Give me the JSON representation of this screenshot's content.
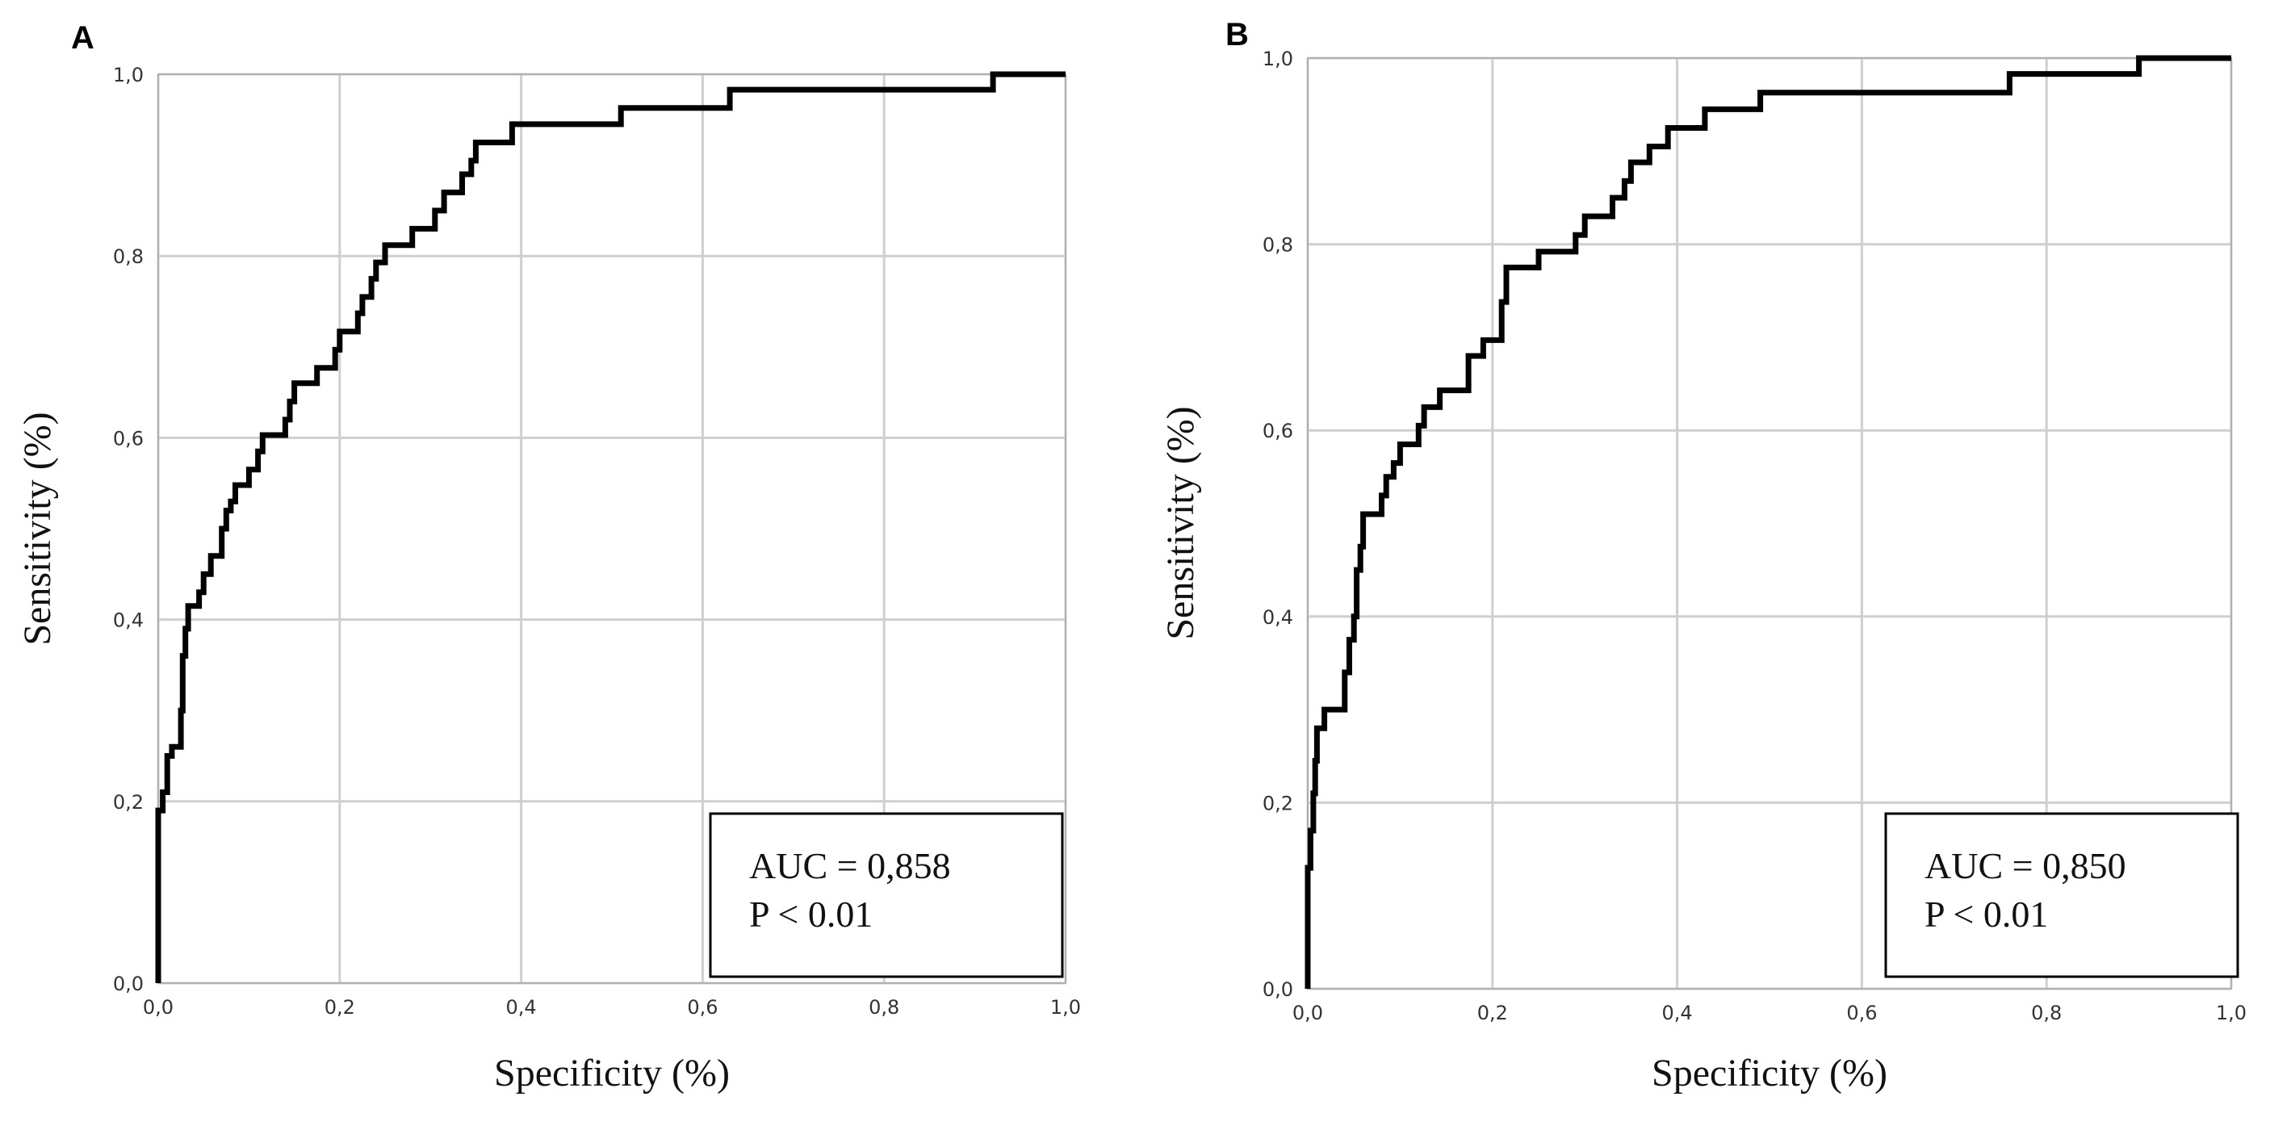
{
  "chart_data": [
    {
      "panel_label": "A",
      "type": "line",
      "xlabel": "Specificity (%)",
      "ylabel": "Sensitivity (%)",
      "xlim": [
        0,
        1
      ],
      "ylim": [
        0,
        1
      ],
      "x_ticks": [
        "0,0",
        "0,2",
        "0,4",
        "0,6",
        "0,8",
        "1,0"
      ],
      "y_ticks": [
        "0,0",
        "0,2",
        "0,4",
        "0,6",
        "0,8",
        "1,0"
      ],
      "grid": true,
      "annotation_placement": "bottom-right",
      "annotation": [
        "AUC = 0,858",
        "P < 0.01"
      ],
      "series": [
        {
          "points": [
            [
              0,
              0
            ],
            [
              0,
              0.19
            ],
            [
              0.005,
              0.19
            ],
            [
              0.005,
              0.21
            ],
            [
              0.01,
              0.21
            ],
            [
              0.01,
              0.25
            ],
            [
              0.015,
              0.25
            ],
            [
              0.015,
              0.26
            ],
            [
              0.025,
              0.26
            ],
            [
              0.025,
              0.3
            ],
            [
              0.027,
              0.3
            ],
            [
              0.027,
              0.36
            ],
            [
              0.03,
              0.36
            ],
            [
              0.03,
              0.39
            ],
            [
              0.033,
              0.39
            ],
            [
              0.033,
              0.415
            ],
            [
              0.045,
              0.415
            ],
            [
              0.045,
              0.43
            ],
            [
              0.05,
              0.43
            ],
            [
              0.05,
              0.45
            ],
            [
              0.058,
              0.45
            ],
            [
              0.058,
              0.47
            ],
            [
              0.07,
              0.47
            ],
            [
              0.07,
              0.5
            ],
            [
              0.075,
              0.5
            ],
            [
              0.075,
              0.52
            ],
            [
              0.08,
              0.52
            ],
            [
              0.08,
              0.53
            ],
            [
              0.085,
              0.53
            ],
            [
              0.085,
              0.548
            ],
            [
              0.1,
              0.548
            ],
            [
              0.1,
              0.565
            ],
            [
              0.11,
              0.565
            ],
            [
              0.11,
              0.585
            ],
            [
              0.115,
              0.585
            ],
            [
              0.115,
              0.603
            ],
            [
              0.14,
              0.603
            ],
            [
              0.14,
              0.62
            ],
            [
              0.145,
              0.62
            ],
            [
              0.145,
              0.64
            ],
            [
              0.15,
              0.64
            ],
            [
              0.15,
              0.66
            ],
            [
              0.175,
              0.66
            ],
            [
              0.175,
              0.677
            ],
            [
              0.195,
              0.677
            ],
            [
              0.195,
              0.697
            ],
            [
              0.2,
              0.697
            ],
            [
              0.2,
              0.717
            ],
            [
              0.22,
              0.717
            ],
            [
              0.22,
              0.737
            ],
            [
              0.225,
              0.737
            ],
            [
              0.225,
              0.755
            ],
            [
              0.235,
              0.755
            ],
            [
              0.235,
              0.775
            ],
            [
              0.24,
              0.775
            ],
            [
              0.24,
              0.793
            ],
            [
              0.25,
              0.793
            ],
            [
              0.25,
              0.812
            ],
            [
              0.28,
              0.812
            ],
            [
              0.28,
              0.83
            ],
            [
              0.305,
              0.83
            ],
            [
              0.305,
              0.85
            ],
            [
              0.315,
              0.85
            ],
            [
              0.315,
              0.87
            ],
            [
              0.335,
              0.87
            ],
            [
              0.335,
              0.89
            ],
            [
              0.345,
              0.89
            ],
            [
              0.345,
              0.905
            ],
            [
              0.35,
              0.905
            ],
            [
              0.35,
              0.925
            ],
            [
              0.39,
              0.925
            ],
            [
              0.39,
              0.945
            ],
            [
              0.51,
              0.945
            ],
            [
              0.51,
              0.963
            ],
            [
              0.63,
              0.963
            ],
            [
              0.63,
              0.983
            ],
            [
              0.92,
              0.983
            ],
            [
              0.92,
              1.0
            ],
            [
              1.0,
              1.0
            ]
          ]
        }
      ]
    },
    {
      "panel_label": "B",
      "type": "line",
      "xlabel": "Specificity (%)",
      "ylabel": "Sensitivity (%)",
      "xlim": [
        0,
        1
      ],
      "ylim": [
        0,
        1
      ],
      "x_ticks": [
        "0,0",
        "0,2",
        "0,4",
        "0,6",
        "0,8",
        "1,0"
      ],
      "y_ticks": [
        "0,0",
        "0,2",
        "0,4",
        "0,6",
        "0,8",
        "1,0"
      ],
      "grid": true,
      "annotation_placement": "bottom-right",
      "annotation": [
        "AUC = 0,850",
        "P < 0.01"
      ],
      "series": [
        {
          "points": [
            [
              0,
              0
            ],
            [
              0,
              0.13
            ],
            [
              0.003,
              0.13
            ],
            [
              0.003,
              0.17
            ],
            [
              0.006,
              0.17
            ],
            [
              0.006,
              0.21
            ],
            [
              0.008,
              0.21
            ],
            [
              0.008,
              0.245
            ],
            [
              0.01,
              0.245
            ],
            [
              0.01,
              0.28
            ],
            [
              0.018,
              0.28
            ],
            [
              0.018,
              0.3
            ],
            [
              0.04,
              0.3
            ],
            [
              0.04,
              0.34
            ],
            [
              0.045,
              0.34
            ],
            [
              0.045,
              0.375
            ],
            [
              0.05,
              0.375
            ],
            [
              0.05,
              0.4
            ],
            [
              0.053,
              0.4
            ],
            [
              0.053,
              0.45
            ],
            [
              0.057,
              0.45
            ],
            [
              0.057,
              0.475
            ],
            [
              0.06,
              0.475
            ],
            [
              0.06,
              0.51
            ],
            [
              0.08,
              0.51
            ],
            [
              0.08,
              0.53
            ],
            [
              0.085,
              0.53
            ],
            [
              0.085,
              0.55
            ],
            [
              0.093,
              0.55
            ],
            [
              0.093,
              0.565
            ],
            [
              0.1,
              0.565
            ],
            [
              0.1,
              0.585
            ],
            [
              0.12,
              0.585
            ],
            [
              0.12,
              0.605
            ],
            [
              0.126,
              0.605
            ],
            [
              0.126,
              0.625
            ],
            [
              0.143,
              0.625
            ],
            [
              0.143,
              0.643
            ],
            [
              0.174,
              0.643
            ],
            [
              0.174,
              0.68
            ],
            [
              0.19,
              0.68
            ],
            [
              0.19,
              0.697
            ],
            [
              0.21,
              0.697
            ],
            [
              0.21,
              0.738
            ],
            [
              0.215,
              0.738
            ],
            [
              0.215,
              0.775
            ],
            [
              0.25,
              0.775
            ],
            [
              0.25,
              0.792
            ],
            [
              0.29,
              0.792
            ],
            [
              0.29,
              0.81
            ],
            [
              0.3,
              0.81
            ],
            [
              0.3,
              0.83
            ],
            [
              0.33,
              0.83
            ],
            [
              0.33,
              0.85
            ],
            [
              0.343,
              0.85
            ],
            [
              0.343,
              0.868
            ],
            [
              0.35,
              0.868
            ],
            [
              0.35,
              0.888
            ],
            [
              0.37,
              0.888
            ],
            [
              0.37,
              0.905
            ],
            [
              0.39,
              0.905
            ],
            [
              0.39,
              0.925
            ],
            [
              0.43,
              0.925
            ],
            [
              0.43,
              0.945
            ],
            [
              0.49,
              0.945
            ],
            [
              0.49,
              0.963
            ],
            [
              0.76,
              0.963
            ],
            [
              0.76,
              0.983
            ],
            [
              0.9,
              0.983
            ],
            [
              0.9,
              1.0
            ],
            [
              1.0,
              1.0
            ]
          ]
        }
      ]
    }
  ]
}
